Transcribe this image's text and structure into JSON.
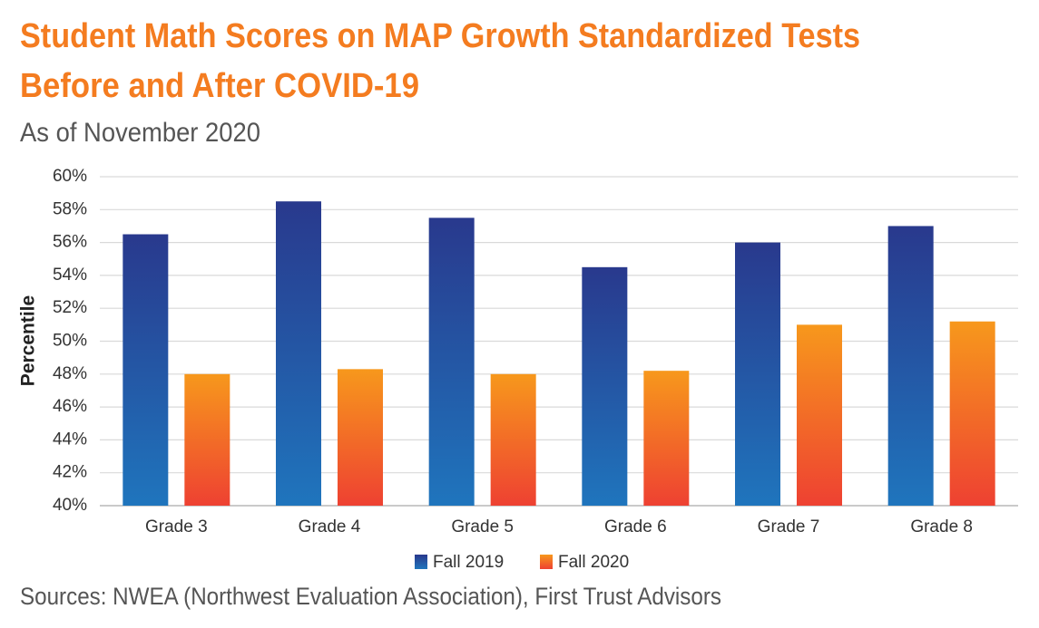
{
  "chart_data": {
    "type": "bar",
    "title": [
      "Student Math Scores on MAP Growth Standardized Tests",
      "Before and After COVID-19"
    ],
    "subtitle": "As of November 2020",
    "source": "Sources: NWEA (Northwest Evaluation Association), First Trust Advisors",
    "ylabel": "Percentile",
    "categories": [
      "Grade 3",
      "Grade 4",
      "Grade 5",
      "Grade 6",
      "Grade 7",
      "Grade 8"
    ],
    "series": [
      {
        "name": "Fall 2019",
        "color": "#29398d",
        "gradient_end": "#1f75bd",
        "values": [
          56.5,
          58.5,
          57.5,
          54.5,
          56,
          57
        ]
      },
      {
        "name": "Fall 2020",
        "color": "#f7981c",
        "gradient_end": "#ee4132",
        "values": [
          48,
          48.3,
          48,
          48.2,
          51,
          51.2
        ]
      }
    ],
    "ylim": [
      40,
      60
    ],
    "yticks": [
      {
        "value": 40,
        "label": "40%"
      },
      {
        "value": 42,
        "label": "42%"
      },
      {
        "value": 44,
        "label": "44%"
      },
      {
        "value": 46,
        "label": "46%"
      },
      {
        "value": 48,
        "label": "48%"
      },
      {
        "value": 50,
        "label": "50%"
      },
      {
        "value": 52,
        "label": "52%"
      },
      {
        "value": 54,
        "label": "54%"
      },
      {
        "value": 56,
        "label": "56%"
      },
      {
        "value": 58,
        "label": "58%"
      },
      {
        "value": 60,
        "label": "60%"
      }
    ],
    "grid": true,
    "legend": "bottom"
  }
}
